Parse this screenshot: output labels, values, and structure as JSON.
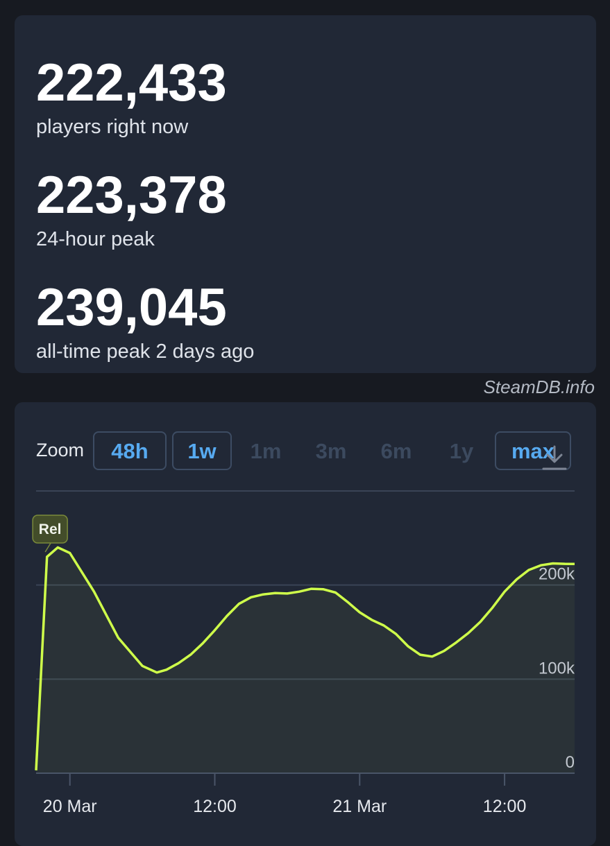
{
  "stats": [
    {
      "value": "222,433",
      "label": "players right now"
    },
    {
      "value": "223,378",
      "label": "24-hour peak"
    },
    {
      "value": "239,045",
      "label": "all-time peak 2 days ago"
    }
  ],
  "credit": "SteamDB.info",
  "zoom": {
    "label": "Zoom",
    "options": [
      {
        "label": "48h",
        "active": true
      },
      {
        "label": "1w",
        "active": true
      },
      {
        "label": "1m",
        "active": false
      },
      {
        "label": "3m",
        "active": false
      },
      {
        "label": "6m",
        "active": false
      },
      {
        "label": "1y",
        "active": false
      },
      {
        "label": "max",
        "active": true
      }
    ],
    "download_icon": "download-icon"
  },
  "chart_data": {
    "type": "area",
    "title": "",
    "xlabel": "",
    "ylabel": "",
    "x_unit": "hours since 20 Mar 00:00",
    "x_ticks": [
      {
        "label": "20 Mar",
        "x": 0
      },
      {
        "label": "12:00",
        "x": 12
      },
      {
        "label": "21 Mar",
        "x": 24
      },
      {
        "label": "12:00",
        "x": 36
      }
    ],
    "xlim": [
      -2.8,
      41.8
    ],
    "y_ticks": [
      {
        "label": "200k",
        "y": 200000
      },
      {
        "label": "100k",
        "y": 100000
      },
      {
        "label": "0",
        "y": 0
      }
    ],
    "ylim": [
      0,
      300000
    ],
    "grid": true,
    "line_color": "#cfff4a",
    "flag": {
      "label": "Rel",
      "x": -1.7
    },
    "series": [
      {
        "name": "",
        "x": [
          -2.8,
          -1.9,
          -1.0,
          0.0,
          2.0,
          4.0,
          6.0,
          7.2,
          8.0,
          9.0,
          10.0,
          11.0,
          12.0,
          13.0,
          14.0,
          15.0,
          16.0,
          17.0,
          18.0,
          19.0,
          20.0,
          21.0,
          22.0,
          23.0,
          24.0,
          25.0,
          26.0,
          27.0,
          28.0,
          29.0,
          30.0,
          31.0,
          32.0,
          33.0,
          34.0,
          35.0,
          36.0,
          37.0,
          38.0,
          39.0,
          40.0,
          41.0,
          41.8
        ],
        "y": [
          3000,
          230000,
          240000,
          234000,
          193000,
          144000,
          114000,
          107000,
          110000,
          117000,
          126000,
          138000,
          152000,
          167000,
          180000,
          187000,
          190000,
          191500,
          191000,
          193000,
          196000,
          195500,
          192000,
          182000,
          171000,
          163000,
          157000,
          148000,
          135000,
          126000,
          124000,
          130000,
          139000,
          149000,
          161000,
          176000,
          193000,
          206000,
          216000,
          221000,
          223000,
          222500,
          222433
        ]
      }
    ]
  }
}
